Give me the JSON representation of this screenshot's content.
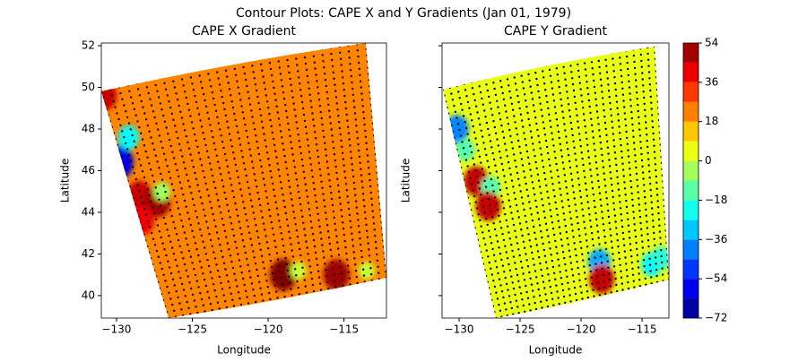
{
  "title": "Contour Plots: CAPE X and Y Gradients (Jan 01, 1979)",
  "colormap": "jet",
  "colorbar": {
    "lim": [
      -72,
      54
    ],
    "ticks": [
      {
        "value": -72,
        "label": "−72"
      },
      {
        "value": -54,
        "label": "−54"
      },
      {
        "value": -36,
        "label": "−36"
      },
      {
        "value": -18,
        "label": "−18"
      },
      0,
      18,
      36,
      54
    ]
  },
  "chart_data": [
    {
      "type": "contour",
      "title": "CAPE X Gradient",
      "x_label": "Longitude",
      "y_label": "Latitude",
      "xlim": [
        -131.0,
        -112.2
      ],
      "ylim": [
        38.92,
        52.13
      ],
      "xticks": [
        {
          "value": -130,
          "label": "−130"
        },
        {
          "value": -125,
          "label": "−125"
        },
        {
          "value": -120,
          "label": "−120"
        },
        {
          "value": -115,
          "label": "−115"
        }
      ],
      "yticks": [
        40,
        42,
        44,
        46,
        48,
        50,
        52
      ],
      "show_ytick_labels": true,
      "fill_value": 22,
      "x": [
        -129.8,
        -129.2,
        -130.8,
        -128.5,
        -127.3,
        -127.0,
        -128.3,
        -119.0,
        -118.0,
        -115.5,
        -113.5
      ],
      "y": [
        46.4,
        47.6,
        49.6,
        44.8,
        44.5,
        45.0,
        43.6,
        41.0,
        41.2,
        41.0,
        41.2
      ],
      "values": [
        -60,
        -25,
        45,
        45,
        50,
        -5,
        40,
        54,
        0,
        50,
        0
      ]
    },
    {
      "type": "contour",
      "title": "CAPE Y Gradient",
      "x_label": "Longitude",
      "y_label": "Latitude",
      "xlim": [
        -131.4,
        -112.8
      ],
      "ylim": [
        38.92,
        52.13
      ],
      "xticks": [
        {
          "value": -130,
          "label": "−130"
        },
        {
          "value": -125,
          "label": "−125"
        },
        {
          "value": -120,
          "label": "−120"
        },
        {
          "value": -115,
          "label": "−115"
        }
      ],
      "yticks": [
        40,
        42,
        44,
        46,
        48,
        50,
        52
      ],
      "show_ytick_labels": false,
      "fill_value": 4,
      "x": [
        -130.2,
        -129.5,
        -128.6,
        -127.4,
        -127.6,
        -118.5,
        -118.3,
        -114.2,
        -113.4
      ],
      "y": [
        48.0,
        47.0,
        45.5,
        45.2,
        44.3,
        41.6,
        40.8,
        41.5,
        41.8
      ],
      "values": [
        -40,
        -15,
        45,
        -15,
        45,
        -35,
        45,
        -25,
        -20
      ]
    }
  ]
}
